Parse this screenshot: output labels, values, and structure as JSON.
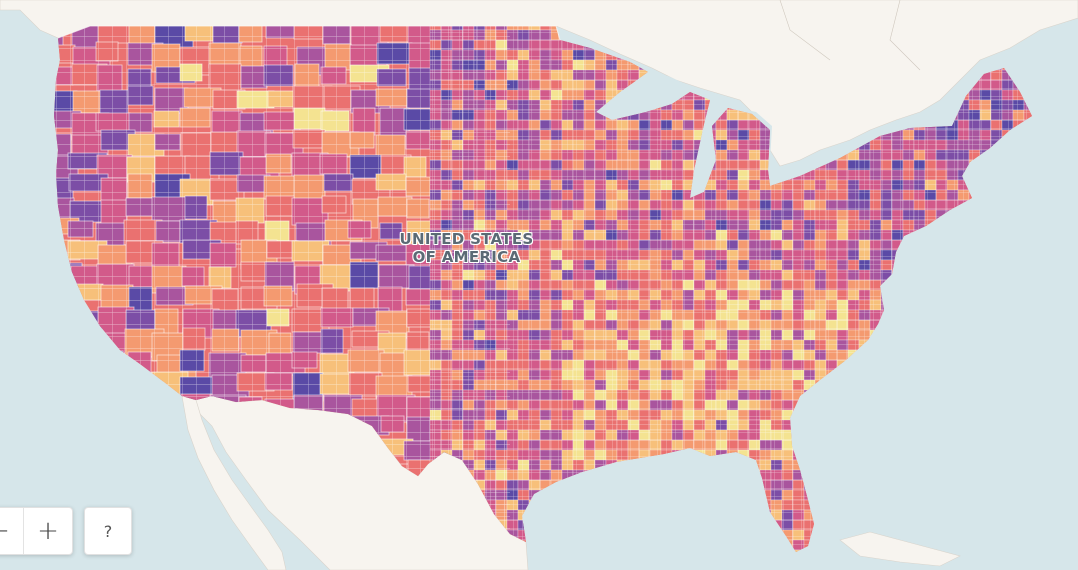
{
  "map": {
    "country_label_line1": "UNITED STATES",
    "country_label_line2": "OF AMERICA",
    "colors": {
      "water": "#d6e6ea",
      "land": "#f7f4ef",
      "palette": [
        "#f4e391",
        "#f7c07a",
        "#f49a70",
        "#ea7170",
        "#d25a8a",
        "#a9559e",
        "#7c4ea6",
        "#5a4aa6"
      ]
    }
  },
  "controls": {
    "zoom_out_label": "−",
    "zoom_in_label": "+",
    "help_label": "?"
  }
}
